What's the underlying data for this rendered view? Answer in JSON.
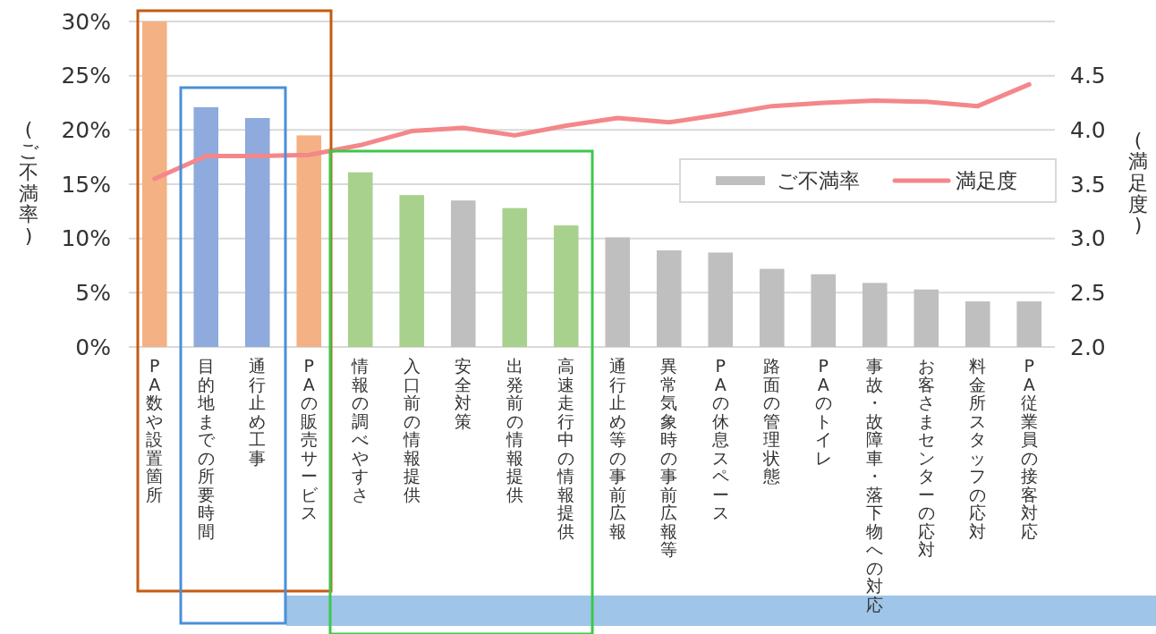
{
  "chart_data": {
    "type": "bar",
    "categories": [
      "PA数や設置箇所",
      "目的地までの所要時間",
      "通行止め工事",
      "PAの販売サービス",
      "情報の調べやすさ",
      "入口前の情報提供",
      "安全対策",
      "出発前の情報提供",
      "高速走行中の情報提供",
      "通行止め等の事前広報",
      "異常気象時の事前広報等",
      "PAの休息スペース",
      "路面の管理状態",
      "PAのトイレ",
      "事故・故障車・落下物への対応",
      "お客さまセンターの応対",
      "料金所スタッフの応対",
      "PA従業員の接客対応"
    ],
    "series": [
      {
        "name": "ご不満率",
        "color": "#bfbfbf",
        "colors": [
          "#f4b183",
          "#8faadc",
          "#8faadc",
          "#f4b183",
          "#a9d18e",
          "#a9d18e",
          "#bfbfbf",
          "#a9d18e",
          "#a9d18e",
          "#bfbfbf",
          "#bfbfbf",
          "#bfbfbf",
          "#bfbfbf",
          "#bfbfbf",
          "#bfbfbf",
          "#bfbfbf",
          "#bfbfbf",
          "#bfbfbf"
        ],
        "values": [
          30.0,
          22.1,
          21.1,
          19.5,
          16.1,
          14.0,
          13.5,
          12.8,
          11.2,
          10.1,
          8.9,
          8.7,
          7.2,
          6.7,
          5.9,
          5.3,
          4.2,
          4.2
        ]
      },
      {
        "name": "満足度",
        "type": "line",
        "axis": "y2",
        "color": "#f4878a",
        "values": [
          3.55,
          3.76,
          3.76,
          3.77,
          3.86,
          3.99,
          4.02,
          3.95,
          4.04,
          4.11,
          4.07,
          4.14,
          4.22,
          4.25,
          4.27,
          4.26,
          4.22,
          4.42
        ]
      }
    ],
    "ylabel": "(ご不満率)",
    "y2label": "(満足度)",
    "ylim": [
      0,
      30
    ],
    "yticks": [
      {
        "value": 0,
        "label": "0%"
      },
      {
        "value": 5,
        "label": "5%"
      },
      {
        "value": 10,
        "label": "10%"
      },
      {
        "value": 15,
        "label": "15%"
      },
      {
        "value": 20,
        "label": "20%"
      },
      {
        "value": 25,
        "label": "25%"
      },
      {
        "value": 30,
        "label": "30%"
      }
    ],
    "y2lim": [
      2,
      5
    ],
    "y2ticks": [
      {
        "value": 2,
        "label": "2.0"
      },
      {
        "value": 2.5,
        "label": "2.5"
      },
      {
        "value": 3,
        "label": "3.0"
      },
      {
        "value": 3.5,
        "label": "3.5"
      },
      {
        "value": 4,
        "label": "4.0"
      },
      {
        "value": 4.5,
        "label": "4.5"
      }
    ],
    "grid": "y",
    "legend": "right",
    "line_style": "solid",
    "marker": "none"
  }
}
